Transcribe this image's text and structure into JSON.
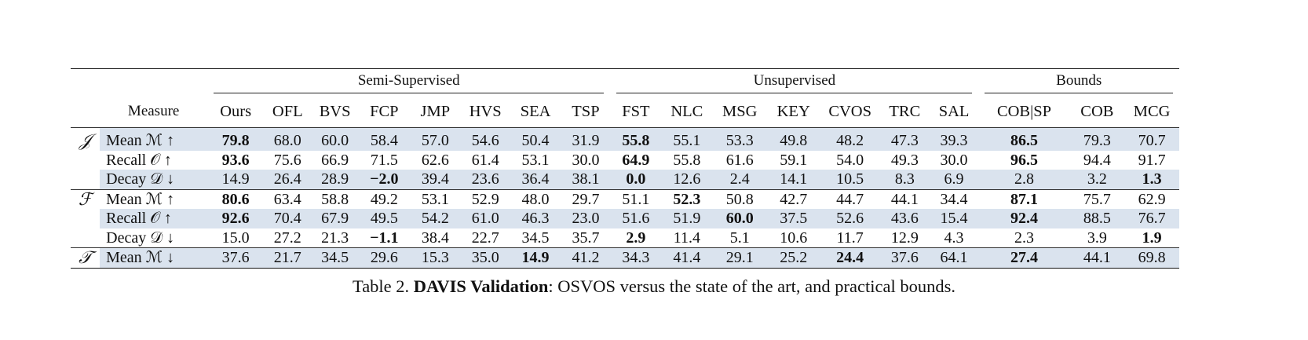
{
  "table": {
    "groups": {
      "semi": "Semi-Supervised",
      "unsup": "Unsupervised",
      "bounds": "Bounds"
    },
    "measure_header": "Measure",
    "columns": [
      "Ours",
      "OFL",
      "BVS",
      "FCP",
      "JMP",
      "HVS",
      "SEA",
      "TSP",
      "FST",
      "NLC",
      "MSG",
      "KEY",
      "CVOS",
      "TRC",
      "SAL",
      "COB|SP",
      "COB",
      "MCG"
    ],
    "rows": [
      {
        "sym": "𝒥",
        "measure": "Mean ℳ ↑",
        "values": [
          "79.8",
          "68.0",
          "60.0",
          "58.4",
          "57.0",
          "54.6",
          "50.4",
          "31.9",
          "55.8",
          "55.1",
          "53.3",
          "49.8",
          "48.2",
          "47.3",
          "39.3",
          "86.5",
          "79.3",
          "70.7"
        ],
        "bold": [
          0,
          8,
          15
        ]
      },
      {
        "sym": "",
        "measure": "Recall 𝒪 ↑",
        "values": [
          "93.6",
          "75.6",
          "66.9",
          "71.5",
          "62.6",
          "61.4",
          "53.1",
          "30.0",
          "64.9",
          "55.8",
          "61.6",
          "59.1",
          "54.0",
          "49.3",
          "30.0",
          "96.5",
          "94.4",
          "91.7"
        ],
        "bold": [
          0,
          8,
          15
        ]
      },
      {
        "sym": "",
        "measure": "Decay 𝒟 ↓",
        "values": [
          "14.9",
          "26.4",
          "28.9",
          "−2.0",
          "39.4",
          "23.6",
          "36.4",
          "38.1",
          "0.0",
          "12.6",
          "2.4",
          "14.1",
          "10.5",
          "8.3",
          "6.9",
          "2.8",
          "3.2",
          "1.3"
        ],
        "bold": [
          3,
          8,
          17
        ]
      },
      {
        "sym": "ℱ",
        "measure": "Mean ℳ ↑",
        "values": [
          "80.6",
          "63.4",
          "58.8",
          "49.2",
          "53.1",
          "52.9",
          "48.0",
          "29.7",
          "51.1",
          "52.3",
          "50.8",
          "42.7",
          "44.7",
          "44.1",
          "34.4",
          "87.1",
          "75.7",
          "62.9"
        ],
        "bold": [
          0,
          9,
          15
        ]
      },
      {
        "sym": "",
        "measure": "Recall 𝒪 ↑",
        "values": [
          "92.6",
          "70.4",
          "67.9",
          "49.5",
          "54.2",
          "61.0",
          "46.3",
          "23.0",
          "51.6",
          "51.9",
          "60.0",
          "37.5",
          "52.6",
          "43.6",
          "15.4",
          "92.4",
          "88.5",
          "76.7"
        ],
        "bold": [
          0,
          10,
          15
        ]
      },
      {
        "sym": "",
        "measure": "Decay 𝒟 ↓",
        "values": [
          "15.0",
          "27.2",
          "21.3",
          "−1.1",
          "38.4",
          "22.7",
          "34.5",
          "35.7",
          "2.9",
          "11.4",
          "5.1",
          "10.6",
          "11.7",
          "12.9",
          "4.3",
          "2.3",
          "3.9",
          "1.9"
        ],
        "bold": [
          3,
          8,
          17
        ]
      },
      {
        "sym": "𝒯",
        "measure": "Mean ℳ ↓",
        "values": [
          "37.6",
          "21.7",
          "34.5",
          "29.6",
          "15.3",
          "35.0",
          "14.9",
          "41.2",
          "34.3",
          "41.4",
          "29.1",
          "25.2",
          "24.4",
          "37.6",
          "64.1",
          "27.4",
          "44.1",
          "69.8"
        ],
        "bold": [
          6,
          12,
          15
        ]
      }
    ]
  },
  "caption": {
    "prefix": "Table 2. ",
    "bold": "DAVIS Validation",
    "rest": ": OSVOS versus the state of the art, and practical bounds."
  }
}
